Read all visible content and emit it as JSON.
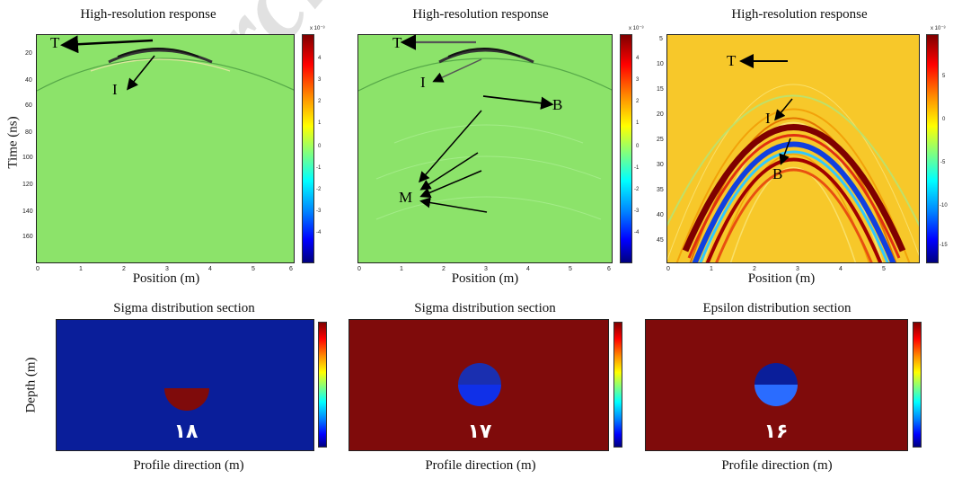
{
  "watermark": "Archive",
  "top_row": [
    {
      "title": "High-resolution response",
      "xlabel": "Position (m)",
      "ylabel": "Time (ns)",
      "x_ticks": [
        "0",
        "1",
        "2",
        "3",
        "4",
        "5",
        "6"
      ],
      "y_ticks": [
        "20",
        "40",
        "60",
        "80",
        "100",
        "120",
        "140",
        "160"
      ],
      "colorbar_exponent": "x 10⁻³",
      "colorbar_ticks": [
        "4",
        "3",
        "2",
        "1",
        "0",
        "-1",
        "-2",
        "-3",
        "-4"
      ],
      "annotations": [
        "T",
        "I"
      ]
    },
    {
      "title": "High-resolution response",
      "xlabel": "Position (m)",
      "ylabel": "",
      "x_ticks": [
        "0",
        "1",
        "2",
        "3",
        "4",
        "5",
        "6"
      ],
      "y_ticks": [],
      "colorbar_exponent": "x 10⁻³",
      "colorbar_ticks": [
        "4",
        "3",
        "2",
        "1",
        "0",
        "-1",
        "-2",
        "-3",
        "-4"
      ],
      "annotations": [
        "T",
        "I",
        "B",
        "M"
      ]
    },
    {
      "title": "High-resolution response",
      "xlabel": "Position (m)",
      "ylabel": "",
      "x_ticks": [
        "0",
        "1",
        "2",
        "3",
        "4",
        "5"
      ],
      "y_ticks": [
        "5",
        "10",
        "15",
        "20",
        "25",
        "30",
        "35",
        "40",
        "45"
      ],
      "colorbar_exponent": "x 10⁻³",
      "colorbar_ticks": [
        "5",
        "0",
        "-5",
        "-10",
        "-15"
      ],
      "annotations": [
        "T",
        "I",
        "B"
      ]
    }
  ],
  "bottom_row": [
    {
      "title": "Sigma distribution section",
      "xlabel": "Profile direction (m)",
      "ylabel": "Depth (m)",
      "number": "۱۸"
    },
    {
      "title": "Sigma distribution section",
      "xlabel": "Profile direction (m)",
      "ylabel": "",
      "number": "۱۷"
    },
    {
      "title": "Epsilon distribution section",
      "xlabel": "Profile direction (m)",
      "ylabel": "",
      "number": "۱۶"
    }
  ],
  "colors": {
    "green_field": "#8ce36a",
    "yellow_field": "#f7c82a",
    "dark_red": "#7f0b0b",
    "dark_blue": "#0a1e9a"
  }
}
